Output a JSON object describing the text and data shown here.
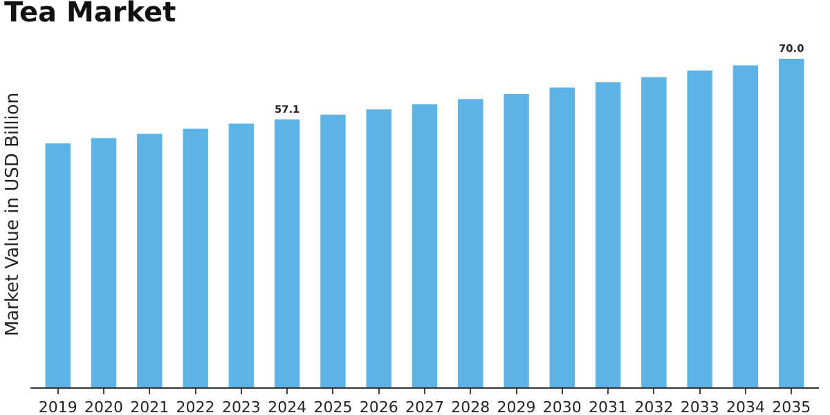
{
  "chart_data": {
    "type": "bar",
    "title": "Tea Market",
    "ylabel": "Market Value in USD Billion",
    "categories": [
      "2019",
      "2020",
      "2021",
      "2022",
      "2023",
      "2024",
      "2025",
      "2026",
      "2027",
      "2028",
      "2029",
      "2030",
      "2031",
      "2032",
      "2033",
      "2034",
      "2035"
    ],
    "values": [
      52.0,
      53.1,
      54.0,
      55.1,
      56.2,
      57.1,
      58.1,
      59.2,
      60.3,
      61.4,
      62.5,
      63.9,
      65.0,
      66.1,
      67.5,
      68.6,
      70.0
    ],
    "value_labels": [
      null,
      null,
      null,
      null,
      null,
      "57.1",
      null,
      null,
      null,
      null,
      null,
      null,
      null,
      null,
      null,
      null,
      "70.0"
    ],
    "color": "#5bb3e6",
    "tick_labels": "x",
    "grid": false
  }
}
